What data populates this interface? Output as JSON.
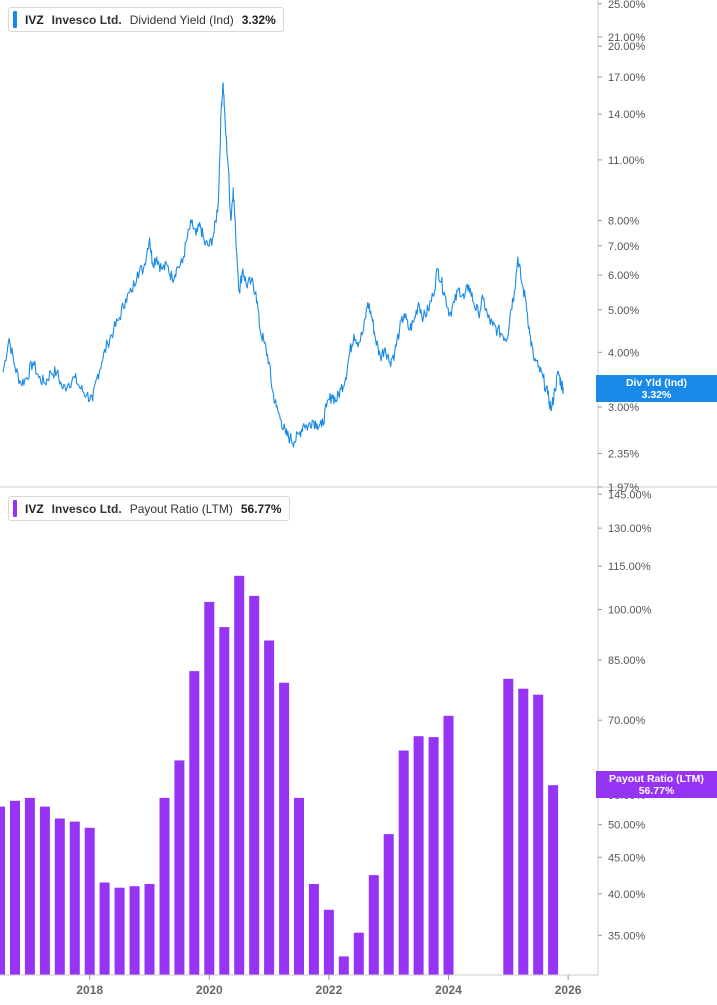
{
  "colors": {
    "yield_line": "#1a8ae8",
    "payout_bar": "#9534f5",
    "axis": "#cccccc",
    "grid_text": "#555555"
  },
  "legends": {
    "yield": {
      "ticker": "IVZ",
      "company": "Invesco Ltd.",
      "metric": "Dividend Yield (Ind)",
      "value": "3.32%"
    },
    "payout": {
      "ticker": "IVZ",
      "company": "Invesco Ltd.",
      "metric": "Payout Ratio (LTM)",
      "value": "56.77%"
    }
  },
  "tags": {
    "yield": {
      "label": "Div Yld (Ind)",
      "value": "3.32%"
    },
    "payout": {
      "label": "Payout Ratio (LTM)",
      "value": "56.77%"
    }
  },
  "chart_data": [
    {
      "type": "line",
      "title": "",
      "series": [
        {
          "name": "Dividend Yield (Ind)",
          "points": [
            [
              2016.55,
              3.6
            ],
            [
              2016.65,
              4.3
            ],
            [
              2016.75,
              3.7
            ],
            [
              2016.85,
              3.4
            ],
            [
              2016.95,
              3.5
            ],
            [
              2017.05,
              3.8
            ],
            [
              2017.15,
              3.5
            ],
            [
              2017.25,
              3.4
            ],
            [
              2017.35,
              3.6
            ],
            [
              2017.45,
              3.6
            ],
            [
              2017.55,
              3.3
            ],
            [
              2017.65,
              3.4
            ],
            [
              2017.75,
              3.5
            ],
            [
              2017.85,
              3.3
            ],
            [
              2017.95,
              3.2
            ],
            [
              2018.05,
              3.1
            ],
            [
              2018.12,
              3.5
            ],
            [
              2018.2,
              3.8
            ],
            [
              2018.3,
              4.2
            ],
            [
              2018.4,
              4.5
            ],
            [
              2018.5,
              4.8
            ],
            [
              2018.6,
              5.3
            ],
            [
              2018.7,
              5.5
            ],
            [
              2018.8,
              6.1
            ],
            [
              2018.9,
              6.2
            ],
            [
              2019.0,
              7.3
            ],
            [
              2019.05,
              6.4
            ],
            [
              2019.12,
              6.6
            ],
            [
              2019.2,
              6.2
            ],
            [
              2019.3,
              6.3
            ],
            [
              2019.38,
              5.9
            ],
            [
              2019.45,
              6.2
            ],
            [
              2019.55,
              6.4
            ],
            [
              2019.62,
              7.2
            ],
            [
              2019.7,
              7.9
            ],
            [
              2019.78,
              7.4
            ],
            [
              2019.85,
              7.8
            ],
            [
              2019.92,
              7.1
            ],
            [
              2020.0,
              7.0
            ],
            [
              2020.08,
              7.5
            ],
            [
              2020.15,
              8.8
            ],
            [
              2020.2,
              14.5
            ],
            [
              2020.23,
              16.5
            ],
            [
              2020.27,
              13.0
            ],
            [
              2020.32,
              10.5
            ],
            [
              2020.36,
              8.0
            ],
            [
              2020.4,
              9.5
            ],
            [
              2020.44,
              7.5
            ],
            [
              2020.5,
              5.5
            ],
            [
              2020.56,
              6.2
            ],
            [
              2020.62,
              5.7
            ],
            [
              2020.7,
              5.8
            ],
            [
              2020.78,
              5.5
            ],
            [
              2020.85,
              4.5
            ],
            [
              2020.92,
              4.2
            ],
            [
              2021.0,
              3.8
            ],
            [
              2021.05,
              3.3
            ],
            [
              2021.12,
              3.0
            ],
            [
              2021.2,
              2.8
            ],
            [
              2021.28,
              2.6
            ],
            [
              2021.35,
              2.55
            ],
            [
              2021.42,
              2.5
            ],
            [
              2021.5,
              2.6
            ],
            [
              2021.58,
              2.75
            ],
            [
              2021.65,
              2.7
            ],
            [
              2021.72,
              2.8
            ],
            [
              2021.8,
              2.75
            ],
            [
              2021.88,
              2.7
            ],
            [
              2021.96,
              3.0
            ],
            [
              2022.05,
              3.2
            ],
            [
              2022.12,
              3.1
            ],
            [
              2022.2,
              3.3
            ],
            [
              2022.28,
              3.5
            ],
            [
              2022.35,
              4.0
            ],
            [
              2022.42,
              4.4
            ],
            [
              2022.5,
              4.2
            ],
            [
              2022.58,
              4.5
            ],
            [
              2022.65,
              5.2
            ],
            [
              2022.72,
              4.8
            ],
            [
              2022.78,
              4.3
            ],
            [
              2022.86,
              3.9
            ],
            [
              2022.94,
              4.1
            ],
            [
              2023.02,
              3.8
            ],
            [
              2023.1,
              4.0
            ],
            [
              2023.18,
              4.5
            ],
            [
              2023.26,
              4.9
            ],
            [
              2023.34,
              4.5
            ],
            [
              2023.42,
              4.7
            ],
            [
              2023.5,
              5.2
            ],
            [
              2023.58,
              4.8
            ],
            [
              2023.66,
              5.0
            ],
            [
              2023.74,
              5.4
            ],
            [
              2023.82,
              6.2
            ],
            [
              2023.88,
              5.8
            ],
            [
              2023.94,
              5.4
            ],
            [
              2024.02,
              4.9
            ],
            [
              2024.1,
              5.2
            ],
            [
              2024.18,
              5.6
            ],
            [
              2024.26,
              5.3
            ],
            [
              2024.34,
              5.7
            ],
            [
              2024.42,
              5.2
            ],
            [
              2024.5,
              4.9
            ],
            [
              2024.58,
              5.3
            ],
            [
              2024.66,
              4.8
            ],
            [
              2024.74,
              4.6
            ],
            [
              2024.82,
              4.5
            ],
            [
              2024.9,
              4.4
            ],
            [
              2024.98,
              4.3
            ],
            [
              2025.04,
              5.0
            ],
            [
              2025.1,
              5.5
            ],
            [
              2025.16,
              6.6
            ],
            [
              2025.22,
              5.8
            ],
            [
              2025.3,
              5.2
            ],
            [
              2025.36,
              4.4
            ],
            [
              2025.42,
              3.9
            ],
            [
              2025.5,
              3.7
            ],
            [
              2025.58,
              3.5
            ],
            [
              2025.66,
              3.2
            ],
            [
              2025.72,
              2.95
            ],
            [
              2025.78,
              3.3
            ],
            [
              2025.84,
              3.6
            ],
            [
              2025.88,
              3.4
            ],
            [
              2025.92,
              3.32
            ]
          ]
        }
      ],
      "yscale": "log",
      "ylim": [
        1.97,
        25.5
      ],
      "xlim": [
        2016.5,
        2026.5
      ],
      "yticks": [
        {
          "v": 25,
          "label": "25.00%"
        },
        {
          "v": 21,
          "label": "21.00%"
        },
        {
          "v": 20,
          "label": "20.00%"
        },
        {
          "v": 17,
          "label": "17.00%"
        },
        {
          "v": 14,
          "label": "14.00%"
        },
        {
          "v": 11,
          "label": "11.00%"
        },
        {
          "v": 8,
          "label": "8.00%"
        },
        {
          "v": 7,
          "label": "7.00%"
        },
        {
          "v": 6,
          "label": "6.00%"
        },
        {
          "v": 5,
          "label": "5.00%"
        },
        {
          "v": 4,
          "label": "4.00%"
        },
        {
          "v": 3,
          "label": "3.00%"
        },
        {
          "v": 2.35,
          "label": "2.35%"
        },
        {
          "v": 1.97,
          "label": "1.97%"
        }
      ],
      "legend": "top-left"
    },
    {
      "type": "bar",
      "title": "",
      "series": [
        {
          "name": "Payout Ratio (LTM)",
          "points": [
            [
              2016.5,
              53.0
            ],
            [
              2016.75,
              54.0
            ],
            [
              2017.0,
              54.5
            ],
            [
              2017.25,
              53.0
            ],
            [
              2017.5,
              51.0
            ],
            [
              2017.75,
              50.5
            ],
            [
              2018.0,
              49.5
            ],
            [
              2018.25,
              41.5
            ],
            [
              2018.5,
              40.8
            ],
            [
              2018.75,
              41.0
            ],
            [
              2019.0,
              41.3
            ],
            [
              2019.25,
              54.5
            ],
            [
              2019.5,
              61.5
            ],
            [
              2019.75,
              82.0
            ],
            [
              2020.0,
              102.5
            ],
            [
              2020.25,
              94.5
            ],
            [
              2020.5,
              111.5
            ],
            [
              2020.75,
              104.5
            ],
            [
              2021.0,
              90.5
            ],
            [
              2021.25,
              79.0
            ],
            [
              2021.5,
              54.5
            ],
            [
              2021.75,
              41.3
            ],
            [
              2022.0,
              38.0
            ],
            [
              2022.25,
              32.7
            ],
            [
              2022.5,
              35.3
            ],
            [
              2022.75,
              42.5
            ],
            [
              2023.0,
              48.5
            ],
            [
              2023.25,
              63.5
            ],
            [
              2023.5,
              66.5
            ],
            [
              2023.75,
              66.3
            ],
            [
              2024.0,
              71.0
            ],
            [
              2025.0,
              80.0
            ],
            [
              2025.25,
              77.5
            ],
            [
              2025.5,
              76.0
            ],
            [
              2025.75,
              56.77
            ]
          ]
        }
      ],
      "yscale": "log",
      "ylim": [
        30.8,
        147
      ],
      "xlim": [
        2016.5,
        2026.5
      ],
      "yticks": [
        {
          "v": 145,
          "label": "145.00%"
        },
        {
          "v": 130,
          "label": "130.00%"
        },
        {
          "v": 115,
          "label": "115.00%"
        },
        {
          "v": 100,
          "label": "100.00%"
        },
        {
          "v": 85,
          "label": "85.00%"
        },
        {
          "v": 70,
          "label": "70.00%"
        },
        {
          "v": 55,
          "label": "55.00%"
        },
        {
          "v": 50,
          "label": "50.00%"
        },
        {
          "v": 45,
          "label": "45.00%"
        },
        {
          "v": 40,
          "label": "40.00%"
        },
        {
          "v": 35,
          "label": "35.00%"
        }
      ],
      "xticks": [
        {
          "v": 2018,
          "label": "2018"
        },
        {
          "v": 2020,
          "label": "2020"
        },
        {
          "v": 2022,
          "label": "2022"
        },
        {
          "v": 2024,
          "label": "2024"
        },
        {
          "v": 2026,
          "label": "2026"
        }
      ],
      "legend": "top-left"
    }
  ]
}
